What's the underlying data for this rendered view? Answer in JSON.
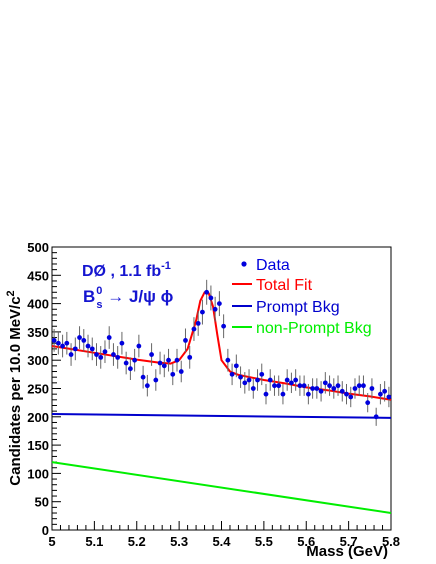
{
  "chart_data": {
    "type": "scatter",
    "xlabel": "Mass  (GeV)",
    "ylabel": "Candidates per 10.0 MeV/c",
    "ylabel_sup": "2",
    "xlim": [
      5.0,
      5.8
    ],
    "ylim": [
      0,
      500
    ],
    "x_ticks": [
      "5",
      "5.1",
      "5.2",
      "5.3",
      "5.4",
      "5.5",
      "5.6",
      "5.7",
      "5.8"
    ],
    "y_ticks": [
      "0",
      "50",
      "100",
      "150",
      "200",
      "250",
      "300",
      "350",
      "400",
      "450",
      "500"
    ],
    "annotations": {
      "experiment": "DØ , 1.1 fb",
      "experiment_sup": "-1",
      "decay_main": "B",
      "decay_sub": "s",
      "decay_sup": "0",
      "decay_arrow": " → J/ψ ϕ"
    },
    "legend": [
      {
        "label": "Data",
        "color": "#0000dd",
        "style": "marker"
      },
      {
        "label": "Total Fit",
        "color": "#ff0000",
        "style": "line"
      },
      {
        "label": "Prompt Bkg",
        "color": "#0000cc",
        "style": "line"
      },
      {
        "label": "non-Prompt Bkg",
        "color": "#00ee00",
        "style": "line"
      }
    ],
    "series": [
      {
        "name": "Data",
        "color": "#0000dd",
        "x": [
          5.005,
          5.015,
          5.025,
          5.035,
          5.045,
          5.055,
          5.065,
          5.075,
          5.085,
          5.095,
          5.105,
          5.115,
          5.125,
          5.135,
          5.145,
          5.155,
          5.165,
          5.175,
          5.185,
          5.195,
          5.205,
          5.215,
          5.225,
          5.235,
          5.245,
          5.255,
          5.265,
          5.275,
          5.285,
          5.295,
          5.305,
          5.315,
          5.325,
          5.335,
          5.345,
          5.355,
          5.365,
          5.375,
          5.385,
          5.395,
          5.405,
          5.415,
          5.425,
          5.435,
          5.445,
          5.455,
          5.465,
          5.475,
          5.485,
          5.495,
          5.505,
          5.515,
          5.525,
          5.535,
          5.545,
          5.555,
          5.565,
          5.575,
          5.585,
          5.595,
          5.605,
          5.615,
          5.625,
          5.635,
          5.645,
          5.655,
          5.665,
          5.675,
          5.685,
          5.695,
          5.705,
          5.715,
          5.725,
          5.735,
          5.745,
          5.755,
          5.765,
          5.775,
          5.785,
          5.795
        ],
        "y": [
          335,
          330,
          325,
          330,
          310,
          320,
          340,
          335,
          325,
          320,
          310,
          305,
          315,
          340,
          310,
          305,
          330,
          295,
          285,
          300,
          325,
          270,
          255,
          310,
          265,
          295,
          290,
          300,
          275,
          300,
          280,
          335,
          305,
          355,
          365,
          385,
          420,
          410,
          390,
          400,
          360,
          300,
          275,
          290,
          270,
          260,
          265,
          250,
          265,
          275,
          240,
          265,
          255,
          255,
          240,
          265,
          260,
          265,
          255,
          255,
          240,
          250,
          250,
          245,
          260,
          255,
          250,
          255,
          245,
          240,
          235,
          250,
          255,
          255,
          225,
          250,
          200,
          240,
          245,
          235
        ],
        "err": [
          20,
          20,
          20,
          20,
          20,
          20,
          20,
          20,
          20,
          20,
          20,
          20,
          20,
          20,
          20,
          20,
          20,
          20,
          20,
          20,
          20,
          20,
          19,
          20,
          19,
          20,
          20,
          20,
          19,
          20,
          19,
          21,
          20,
          21,
          22,
          22,
          22,
          22,
          22,
          22,
          21,
          20,
          19,
          20,
          19,
          19,
          19,
          18,
          19,
          19,
          18,
          19,
          18,
          18,
          18,
          19,
          18,
          19,
          18,
          18,
          18,
          18,
          18,
          18,
          19,
          18,
          18,
          18,
          18,
          18,
          18,
          18,
          18,
          18,
          17,
          18,
          16,
          18,
          18,
          18
        ]
      },
      {
        "name": "Total Fit",
        "color": "#ff0000",
        "x": [
          5.0,
          5.05,
          5.1,
          5.15,
          5.2,
          5.25,
          5.28,
          5.3,
          5.32,
          5.34,
          5.35,
          5.36,
          5.37,
          5.38,
          5.39,
          5.4,
          5.42,
          5.44,
          5.5,
          5.55,
          5.6,
          5.65,
          5.7,
          5.75,
          5.8
        ],
        "y": [
          325,
          319,
          313,
          307,
          301,
          296,
          294,
          300,
          320,
          370,
          405,
          420,
          418,
          395,
          345,
          300,
          280,
          274,
          265,
          259,
          252,
          247,
          241,
          236,
          230
        ]
      },
      {
        "name": "Prompt Bkg",
        "color": "#0000cc",
        "x": [
          5.0,
          5.8
        ],
        "y": [
          205,
          198
        ]
      },
      {
        "name": "non-Prompt Bkg",
        "color": "#00ee00",
        "x": [
          5.0,
          5.8
        ],
        "y": [
          120,
          30
        ]
      }
    ]
  }
}
